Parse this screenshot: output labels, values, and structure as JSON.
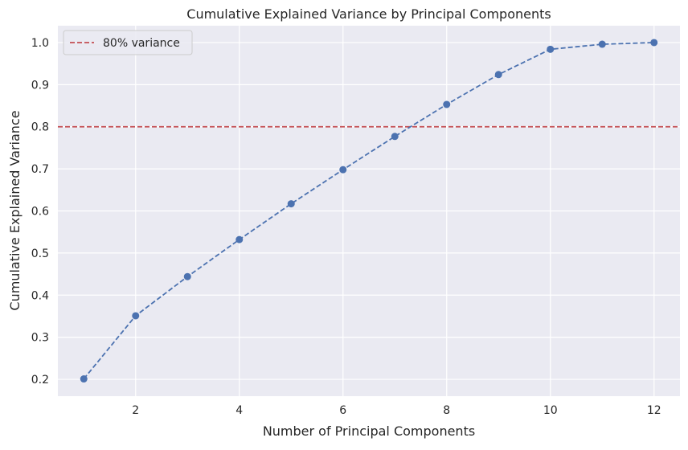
{
  "chart_data": {
    "type": "line",
    "title": "Cumulative Explained Variance by Principal Components",
    "xlabel": "Number of Principal Components",
    "ylabel": "Cumulative Explained Variance",
    "x": [
      1,
      2,
      3,
      4,
      5,
      6,
      7,
      8,
      9,
      10,
      11,
      12
    ],
    "series": [
      {
        "values": [
          0.201,
          0.351,
          0.444,
          0.532,
          0.617,
          0.698,
          0.777,
          0.853,
          0.924,
          0.984,
          0.996,
          1.0
        ],
        "color": "#4c72b0",
        "line_style": "dashed",
        "marker": "circle"
      }
    ],
    "reference_line": {
      "y": 0.8,
      "label": "80% variance",
      "color": "#c44e52",
      "line_style": "dashed"
    },
    "xlim": [
      0.5,
      12.5
    ],
    "ylim": [
      0.16,
      1.04
    ],
    "xticks": [
      2,
      4,
      6,
      8,
      10,
      12
    ],
    "yticks": [
      0.2,
      0.3,
      0.4,
      0.5,
      0.6,
      0.7,
      0.8,
      0.9,
      1.0
    ],
    "ytick_labels": [
      "0.2",
      "0.3",
      "0.4",
      "0.5",
      "0.6",
      "0.7",
      "0.8",
      "0.9",
      "1.0"
    ],
    "grid": true,
    "background": "#eaeaf2",
    "legend_position": "top-left"
  }
}
